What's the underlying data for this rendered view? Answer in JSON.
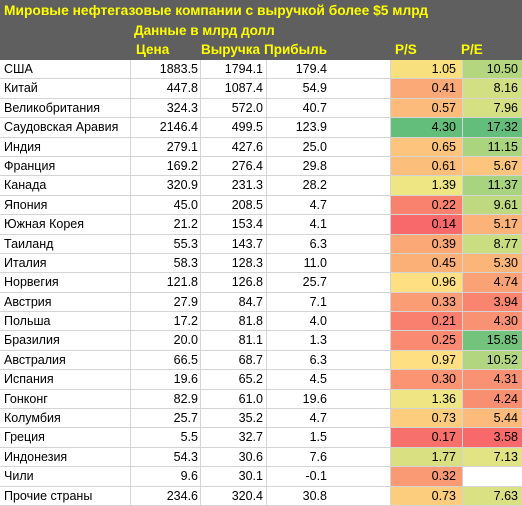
{
  "header": {
    "title": "Мировые нефтегазовые компании с выручкой более $5 млрд",
    "subtitle": "Данные в млрд долл",
    "columns": {
      "price": "Цена",
      "revenue": "Выручка",
      "profit": "Прибыль",
      "ps": "P/S",
      "pe": "P/E"
    }
  },
  "rows": [
    {
      "country": "США",
      "price": "1883.5",
      "revenue": "1794.1",
      "profit": "179.4",
      "ps": "1.05",
      "pe": "10.50",
      "ps_color": "#f9e07f",
      "pe_color": "#b3d67f"
    },
    {
      "country": "Китай",
      "price": "447.8",
      "revenue": "1087.4",
      "profit": "54.9",
      "ps": "0.41",
      "pe": "8.16",
      "ps_color": "#fbaa77",
      "pe_color": "#d2df82"
    },
    {
      "country": "Великобритания",
      "price": "324.3",
      "revenue": "572.0",
      "profit": "40.7",
      "ps": "0.57",
      "pe": "7.96",
      "ps_color": "#fcbb7b",
      "pe_color": "#d5e082"
    },
    {
      "country": "Саудовская Аравия",
      "price": "2146.4",
      "revenue": "499.5",
      "profit": "123.9",
      "ps": "4.30",
      "pe": "17.32",
      "ps_color": "#63be7b",
      "pe_color": "#63be7b"
    },
    {
      "country": "Индия",
      "price": "279.1",
      "revenue": "427.6",
      "profit": "25.0",
      "ps": "0.65",
      "pe": "11.15",
      "ps_color": "#fcc47c",
      "pe_color": "#abd47f"
    },
    {
      "country": "Франция",
      "price": "169.2",
      "revenue": "276.4",
      "profit": "29.8",
      "ps": "0.61",
      "pe": "5.67",
      "ps_color": "#fcbf7b",
      "pe_color": "#fcc47c"
    },
    {
      "country": "Канада",
      "price": "320.9",
      "revenue": "231.3",
      "profit": "28.2",
      "ps": "1.39",
      "pe": "11.37",
      "ps_color": "#eee683",
      "pe_color": "#a8d37f"
    },
    {
      "country": "Япония",
      "price": "45.0",
      "revenue": "208.5",
      "profit": "4.7",
      "ps": "0.22",
      "pe": "9.61",
      "ps_color": "#f9826f",
      "pe_color": "#bfd980"
    },
    {
      "country": "Южная Корея",
      "price": "21.2",
      "revenue": "153.4",
      "profit": "4.1",
      "ps": "0.14",
      "pe": "5.17",
      "ps_color": "#f8696b",
      "pe_color": "#fbb379"
    },
    {
      "country": "Таиланд",
      "price": "55.3",
      "revenue": "143.7",
      "profit": "6.3",
      "ps": "0.39",
      "pe": "8.77",
      "ps_color": "#fba876",
      "pe_color": "#cadd81"
    },
    {
      "country": "Италия",
      "price": "58.3",
      "revenue": "128.3",
      "profit": "11.0",
      "ps": "0.45",
      "pe": "5.30",
      "ps_color": "#fbb077",
      "pe_color": "#fbb579"
    },
    {
      "country": "Норвегия",
      "price": "121.8",
      "revenue": "126.8",
      "profit": "25.7",
      "ps": "0.96",
      "pe": "4.74",
      "ps_color": "#fedf81",
      "pe_color": "#faa175"
    },
    {
      "country": "Австрия",
      "price": "27.9",
      "revenue": "84.7",
      "profit": "7.1",
      "ps": "0.33",
      "pe": "3.94",
      "ps_color": "#fa9c74",
      "pe_color": "#f98570"
    },
    {
      "country": "Польша",
      "price": "17.2",
      "revenue": "81.8",
      "profit": "4.0",
      "ps": "0.21",
      "pe": "4.30",
      "ps_color": "#f97f6f",
      "pe_color": "#f99272"
    },
    {
      "country": "Бразилия",
      "price": "20.0",
      "revenue": "81.1",
      "profit": "1.3",
      "ps": "0.25",
      "pe": "15.85",
      "ps_color": "#fa8a71",
      "pe_color": "#73c37c"
    },
    {
      "country": "Австралия",
      "price": "66.5",
      "revenue": "68.7",
      "profit": "6.3",
      "ps": "0.97",
      "pe": "10.52",
      "ps_color": "#fee082",
      "pe_color": "#b2d67f"
    },
    {
      "country": "Испания",
      "price": "19.6",
      "revenue": "65.2",
      "profit": "4.5",
      "ps": "0.30",
      "pe": "4.31",
      "ps_color": "#fa9473",
      "pe_color": "#f99272"
    },
    {
      "country": "Гонконг",
      "price": "82.9",
      "revenue": "61.0",
      "profit": "19.6",
      "ps": "1.36",
      "pe": "4.24",
      "ps_color": "#efe683",
      "pe_color": "#f98f71"
    },
    {
      "country": "Колумбия",
      "price": "25.7",
      "revenue": "35.2",
      "profit": "4.7",
      "ps": "0.73",
      "pe": "5.44",
      "ps_color": "#fdcd7e",
      "pe_color": "#fcbb7b"
    },
    {
      "country": "Греция",
      "price": "5.5",
      "revenue": "32.7",
      "profit": "1.5",
      "ps": "0.17",
      "pe": "3.58",
      "ps_color": "#f8706c",
      "pe_color": "#f8696b"
    },
    {
      "country": "Индонезия",
      "price": "54.3",
      "revenue": "30.6",
      "profit": "7.6",
      "ps": "1.77",
      "pe": "7.13",
      "ps_color": "#d8e082",
      "pe_color": "#e2e383"
    },
    {
      "country": "Чили",
      "price": "9.6",
      "revenue": "30.1",
      "profit": "-0.1",
      "ps": "0.32",
      "pe": "",
      "ps_color": "#fa9a74",
      "pe_color": "#ffffff"
    },
    {
      "country": "Прочие страны",
      "price": "234.6",
      "revenue": "320.4",
      "profit": "30.8",
      "ps": "0.73",
      "pe": "7.63",
      "ps_color": "#fdcd7e",
      "pe_color": "#dae182"
    }
  ]
}
